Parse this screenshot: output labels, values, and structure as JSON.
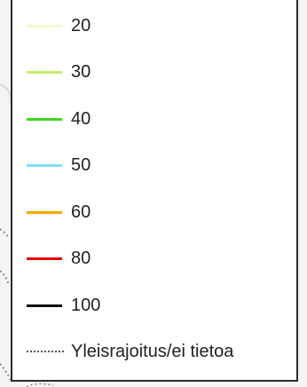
{
  "legend": {
    "items": [
      {
        "label": "20",
        "color": "#f4f9c3",
        "style": "solid"
      },
      {
        "label": "30",
        "color": "#c7ee6c",
        "style": "solid"
      },
      {
        "label": "40",
        "color": "#3ed91e",
        "style": "solid"
      },
      {
        "label": "50",
        "color": "#7fdcff",
        "style": "solid"
      },
      {
        "label": "60",
        "color": "#f2a900",
        "style": "solid"
      },
      {
        "label": "80",
        "color": "#e50000",
        "style": "solid"
      },
      {
        "label": "100",
        "color": "#111111",
        "style": "solid"
      },
      {
        "label": "Yleisrajoitus/ei tietoa",
        "color": "#555555",
        "style": "dotted"
      }
    ]
  }
}
